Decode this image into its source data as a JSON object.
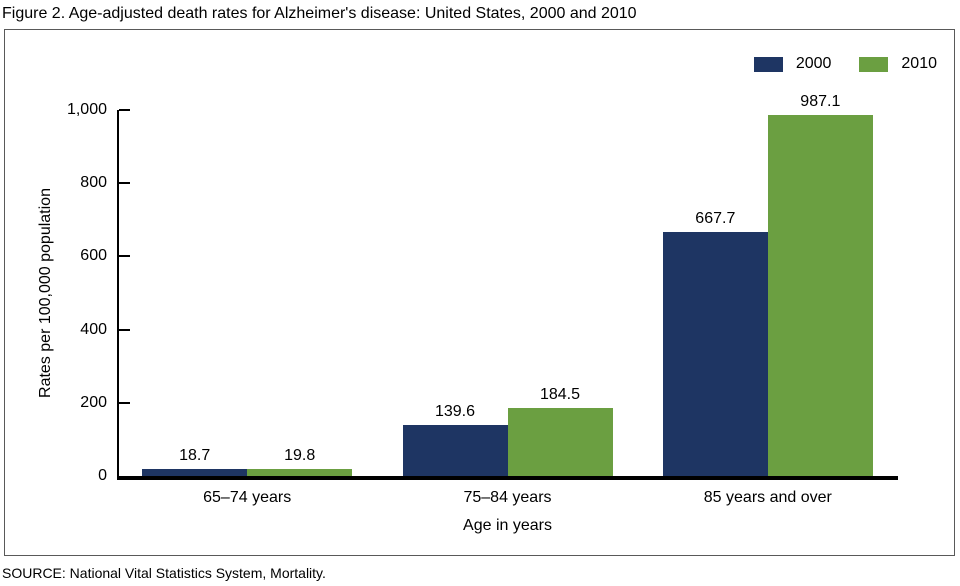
{
  "title": "Figure 2. Age-adjusted death rates for Alzheimer's disease: United States, 2000 and 2010",
  "source": "SOURCE: National Vital Statistics System, Mortality.",
  "chart_data": {
    "type": "bar",
    "categories": [
      "65–74 years",
      "75–84 years",
      "85 years and over"
    ],
    "series": [
      {
        "name": "2000",
        "color": "#1E3563",
        "values": [
          18.7,
          139.6,
          667.7
        ]
      },
      {
        "name": "2010",
        "color": "#6B9F41",
        "values": [
          19.8,
          184.5,
          987.1
        ]
      }
    ],
    "title": "Figure 2. Age-adjusted death rates for Alzheimer's disease: United States, 2000 and 2010",
    "xlabel": "Age in years",
    "ylabel": "Rates per 100,000 population",
    "ylim": [
      0,
      1000
    ],
    "yticks": [
      0,
      200,
      400,
      600,
      800,
      1000
    ],
    "ytick_labels": [
      "0",
      "200",
      "400",
      "600",
      "800",
      "1,000"
    ],
    "grid": false,
    "legend_position": "top-right",
    "value_labels": true,
    "axis_color": "#000000",
    "frame_color": "#595959"
  }
}
